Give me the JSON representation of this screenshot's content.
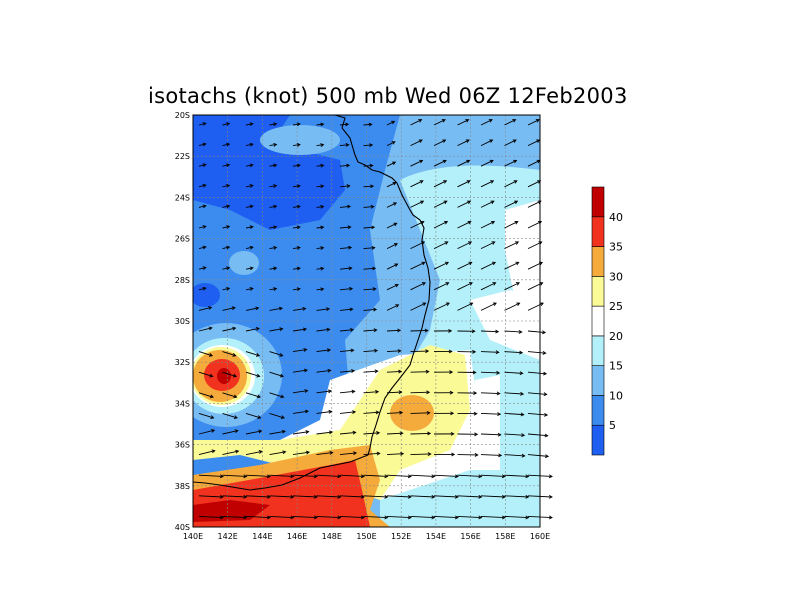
{
  "title": "isotachs (knot) 500 mb Wed 06Z 12Feb2003",
  "map": {
    "lat_ticks": [
      "20S",
      "22S",
      "24S",
      "26S",
      "28S",
      "30S",
      "32S",
      "34S",
      "36S",
      "38S",
      "40S"
    ],
    "lon_ticks": [
      "140E",
      "142E",
      "144E",
      "146E",
      "148E",
      "150E",
      "152E",
      "154E",
      "156E",
      "158E",
      "160E"
    ],
    "lat_range": [
      -40,
      -20
    ],
    "lon_range": [
      140,
      160
    ]
  },
  "colorbar": {
    "labels": [
      "5",
      "10",
      "15",
      "20",
      "25",
      "30",
      "35",
      "40"
    ],
    "colors": [
      "#1e5ef0",
      "#3c8cf0",
      "#78bcf4",
      "#b4f0fa",
      "#ffffff",
      "#fafa96",
      "#f5aa3c",
      "#f0321e",
      "#c00000"
    ]
  },
  "chart_data": {
    "type": "heatmap",
    "variable": "isotachs",
    "units": "knot",
    "level": "500 mb",
    "levels": [
      5,
      10,
      15,
      20,
      25,
      30,
      35,
      40
    ],
    "features": [
      {
        "region": "lon 140-146E, lat 22-27S",
        "speed_range": [
          0,
          5
        ]
      },
      {
        "region": "lon 140-144E, lat 31-35S",
        "speed_range": [
          35,
          40
        ]
      },
      {
        "region": "lon 152-154E, lat 34-35S",
        "speed_range": [
          30,
          35
        ]
      },
      {
        "region": "lon 140-150E, lat 38-40S",
        "speed_range": [
          35,
          40
        ]
      }
    ]
  }
}
